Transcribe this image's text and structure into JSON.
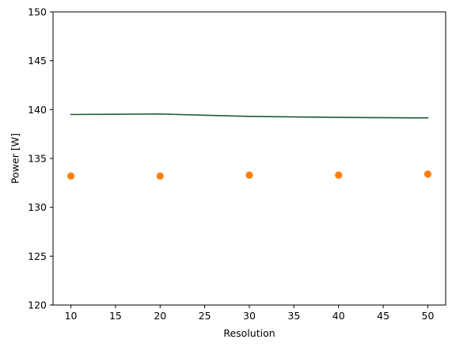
{
  "chart_data": {
    "type": "line",
    "title": "",
    "xlabel": "Resolution",
    "ylabel": "Power [W]",
    "xlim": [
      8,
      52
    ],
    "ylim": [
      120,
      150
    ],
    "xticks": [
      10,
      15,
      20,
      25,
      30,
      35,
      40,
      45,
      50
    ],
    "yticks": [
      120,
      125,
      130,
      135,
      140,
      145,
      150
    ],
    "grid": false,
    "legend": "none",
    "series": [
      {
        "kind": "line",
        "color": "#1f5c38",
        "x": [
          10,
          20,
          30,
          40,
          50
        ],
        "y": [
          139.5,
          139.55,
          139.3,
          139.2,
          139.15
        ]
      },
      {
        "kind": "scatter",
        "color": "#ff7f0e",
        "x": [
          10,
          20,
          30,
          40,
          50
        ],
        "y": [
          133.2,
          133.2,
          133.3,
          133.3,
          133.4
        ]
      }
    ]
  }
}
